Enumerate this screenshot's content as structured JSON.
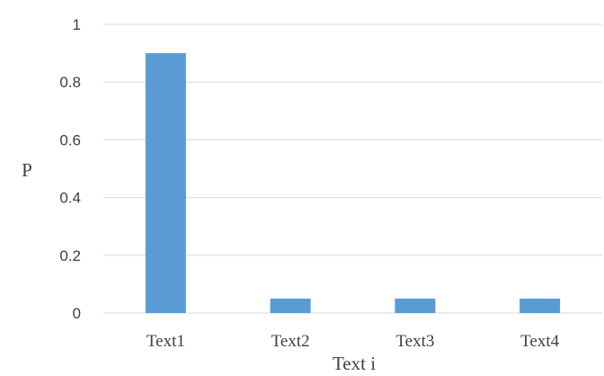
{
  "chart_data": {
    "type": "bar",
    "categories": [
      "Text1",
      "Text2",
      "Text3",
      "Text4"
    ],
    "values": [
      0.9,
      0.05,
      0.05,
      0.05
    ],
    "title": "",
    "xlabel": "Text i",
    "ylabel": "P",
    "ylim": [
      0,
      1
    ],
    "yticks": [
      0,
      0.2,
      0.4,
      0.6,
      0.8,
      1
    ],
    "ytick_labels": [
      "0",
      "0.2",
      "0.4",
      "0.6",
      "0.8",
      "1"
    ],
    "grid": true,
    "legend": "none",
    "bar_color": "#5b9bd5",
    "grid_color": "#d9d9d9"
  }
}
